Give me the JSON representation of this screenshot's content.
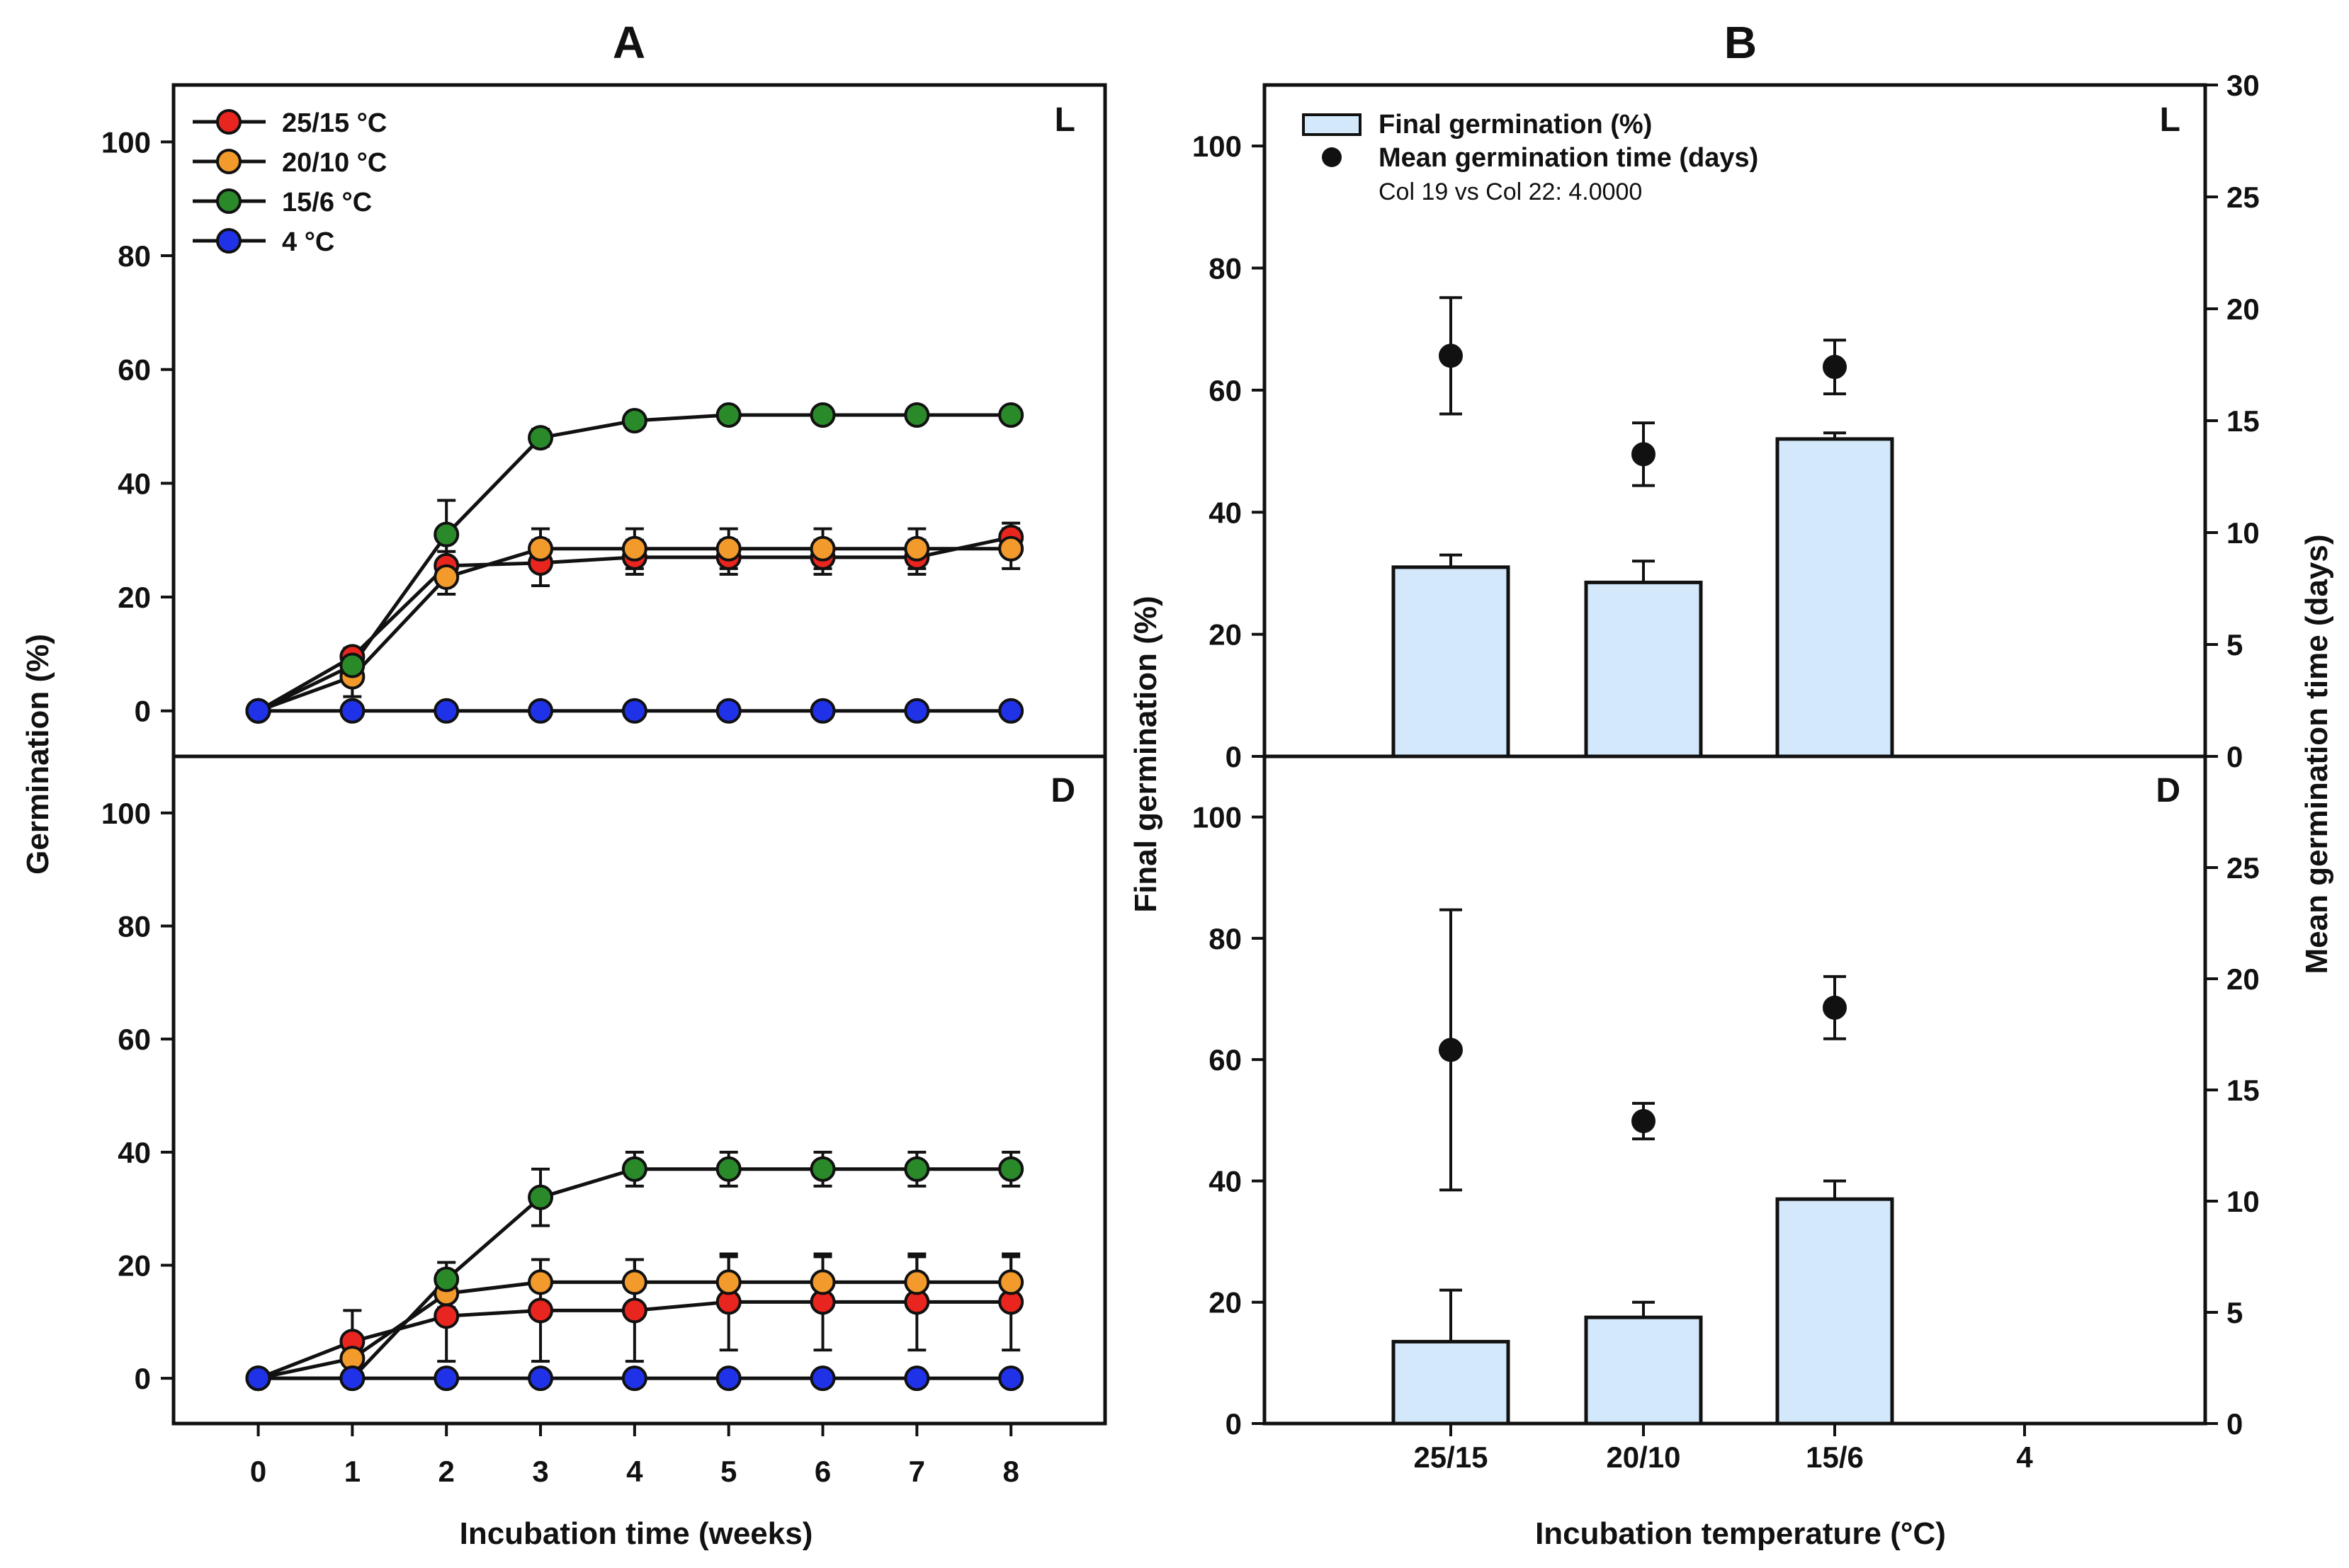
{
  "panel_labels": {
    "a": "A",
    "b": "B"
  },
  "chart_data": [
    {
      "type": "line",
      "id": "A",
      "xlabel": "Incubation time (weeks)",
      "ylabel": "Germination (%)",
      "x": [
        0,
        1,
        2,
        3,
        4,
        5,
        6,
        7,
        8
      ],
      "xlim": [
        -0.9,
        9.0
      ],
      "ylim": [
        -8,
        110
      ],
      "yticks": [
        0,
        20,
        40,
        60,
        80,
        100
      ],
      "legend_position": "top-left",
      "subplots": [
        {
          "label": "L",
          "series": [
            {
              "name": "25/15 °C",
              "color": "#e8251e",
              "values": [
                0,
                9.5,
                25.5,
                26,
                27,
                27,
                27,
                27,
                30.5
              ],
              "errors": [
                0,
                1.5,
                2.5,
                4,
                3,
                3,
                3,
                3,
                2.5
              ]
            },
            {
              "name": "20/10 °C",
              "color": "#f39a2c",
              "values": [
                0,
                6,
                23.5,
                28.5,
                28.5,
                28.5,
                28.5,
                28.5,
                28.5
              ],
              "errors": [
                0,
                3.5,
                3,
                3.5,
                3.5,
                3.5,
                3.5,
                3.5,
                3.5
              ]
            },
            {
              "name": "15/6 °C",
              "color": "#2a8a2a",
              "values": [
                0,
                8,
                31,
                48,
                51,
                52,
                52,
                52,
                52
              ],
              "errors": [
                0,
                1.5,
                6,
                1.5,
                1,
                1,
                1,
                1,
                1
              ]
            },
            {
              "name": "4 °C",
              "color": "#1f32e8",
              "values": [
                0,
                0,
                0,
                0,
                0,
                0,
                0,
                0,
                0
              ],
              "errors": [
                0,
                0,
                0,
                0,
                0,
                0,
                0,
                0,
                0
              ]
            }
          ]
        },
        {
          "label": "D",
          "series": [
            {
              "name": "25/15 °C",
              "color": "#e8251e",
              "values": [
                0,
                6.5,
                11,
                12,
                12,
                13.5,
                13.5,
                13.5,
                13.5
              ],
              "errors": [
                0,
                5.5,
                8,
                9,
                9,
                8.5,
                8.5,
                8.5,
                8.5
              ]
            },
            {
              "name": "20/10 °C",
              "color": "#f39a2c",
              "values": [
                0,
                3.5,
                15,
                17,
                17,
                17,
                17,
                17,
                17
              ],
              "errors": [
                0,
                3,
                2.5,
                4,
                4,
                4.5,
                4.5,
                4.5,
                4.5
              ]
            },
            {
              "name": "15/6 °C",
              "color": "#2a8a2a",
              "values": [
                0,
                0,
                17.5,
                32,
                37,
                37,
                37,
                37,
                37
              ],
              "errors": [
                0,
                0,
                3,
                5,
                3,
                3,
                3,
                3,
                3
              ]
            },
            {
              "name": "4 °C",
              "color": "#1f32e8",
              "values": [
                0,
                0,
                0,
                0,
                0,
                0,
                0,
                0,
                0
              ],
              "errors": [
                0,
                0,
                0,
                0,
                0,
                0,
                0,
                0,
                0
              ]
            }
          ]
        }
      ]
    },
    {
      "type": "bar",
      "id": "B",
      "xlabel": "Incubation temperature (°C)",
      "ylabel": "Final germination (%)",
      "y2label": "Mean germination time (days)",
      "categories": [
        "25/15",
        "20/10",
        "15/6",
        "4"
      ],
      "ylim": [
        0,
        110
      ],
      "yticks": [
        0,
        20,
        40,
        60,
        80,
        100
      ],
      "y2lim": [
        0,
        30
      ],
      "legend": {
        "bar": "Final germination (%)",
        "point": "Mean germination time (days)",
        "note": "Col 19 vs Col 22: 4.0000"
      },
      "subplots": [
        {
          "label": "L",
          "y2ticks": [
            0,
            5,
            10,
            15,
            20,
            25,
            30
          ],
          "bar_values": [
            31,
            28.5,
            52,
            null
          ],
          "bar_errors": [
            2,
            3.5,
            1,
            null
          ],
          "mgt_values": [
            17.9,
            13.5,
            17.4,
            null
          ],
          "mgt_errors": [
            2.6,
            1.4,
            1.2,
            null
          ]
        },
        {
          "label": "D",
          "y2ticks": [
            0,
            5,
            10,
            15,
            20,
            25
          ],
          "bar_values": [
            13.5,
            17.5,
            37,
            null
          ],
          "bar_errors": [
            8.5,
            2.5,
            3,
            null
          ],
          "mgt_values": [
            16.8,
            13.6,
            18.7,
            null
          ],
          "mgt_errors": [
            6.3,
            0.8,
            1.4,
            null
          ]
        }
      ]
    }
  ]
}
